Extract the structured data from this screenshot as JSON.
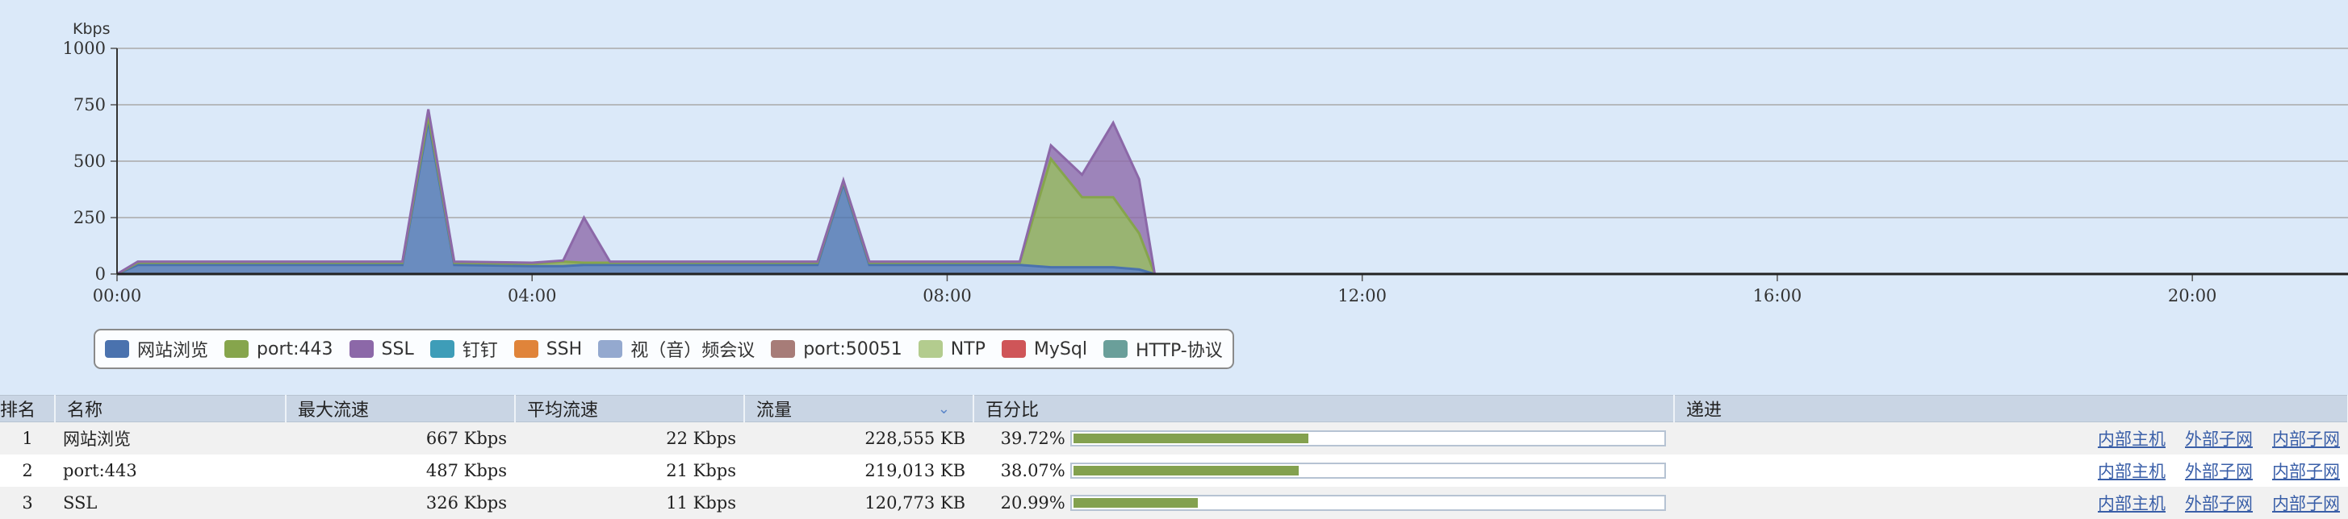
{
  "chart_data": {
    "type": "area",
    "ylabel": "Kbps",
    "ylim": [
      0,
      1000
    ],
    "yticks": [
      "0",
      "250",
      "500",
      "750",
      "1000"
    ],
    "xticks": [
      "00:00",
      "04:00",
      "08:00",
      "12:00",
      "16:00",
      "20:00"
    ],
    "x_range_hours": [
      0,
      21.5
    ],
    "stacked": true,
    "grid": true,
    "legend_position": "bottom-left",
    "series": [
      {
        "name": "网站浏览",
        "color": "#4a72ae",
        "points": [
          [
            0,
            0
          ],
          [
            0.2,
            40
          ],
          [
            1,
            40
          ],
          [
            2,
            40
          ],
          [
            2.75,
            40
          ],
          [
            3,
            680
          ],
          [
            3.25,
            40
          ],
          [
            4,
            35
          ],
          [
            4.3,
            35
          ],
          [
            4.5,
            40
          ],
          [
            4.75,
            40
          ],
          [
            5,
            40
          ],
          [
            6,
            40
          ],
          [
            6.75,
            40
          ],
          [
            7,
            400
          ],
          [
            7.25,
            40
          ],
          [
            8,
            40
          ],
          [
            8.4,
            40
          ],
          [
            8.7,
            40
          ],
          [
            9,
            30
          ],
          [
            9.3,
            30
          ],
          [
            9.6,
            30
          ],
          [
            9.85,
            20
          ],
          [
            10.0,
            0
          ],
          [
            21.5,
            0
          ]
        ]
      },
      {
        "name": "port:443",
        "color": "#86a54c",
        "points": [
          [
            0,
            0
          ],
          [
            0.2,
            10
          ],
          [
            1,
            10
          ],
          [
            2,
            10
          ],
          [
            2.75,
            10
          ],
          [
            3,
            20
          ],
          [
            3.25,
            10
          ],
          [
            4,
            10
          ],
          [
            4.3,
            20
          ],
          [
            4.5,
            10
          ],
          [
            4.75,
            10
          ],
          [
            5,
            10
          ],
          [
            6,
            10
          ],
          [
            6.75,
            10
          ],
          [
            7,
            10
          ],
          [
            7.25,
            10
          ],
          [
            8,
            10
          ],
          [
            8.4,
            10
          ],
          [
            8.7,
            10
          ],
          [
            9,
            480
          ],
          [
            9.3,
            310
          ],
          [
            9.6,
            310
          ],
          [
            9.85,
            160
          ],
          [
            10.0,
            0
          ],
          [
            21.5,
            0
          ]
        ]
      },
      {
        "name": "SSL",
        "color": "#8c68a8",
        "points": [
          [
            0,
            0
          ],
          [
            0.2,
            5
          ],
          [
            1,
            5
          ],
          [
            2,
            5
          ],
          [
            2.75,
            5
          ],
          [
            3,
            30
          ],
          [
            3.25,
            5
          ],
          [
            4,
            5
          ],
          [
            4.3,
            5
          ],
          [
            4.5,
            200
          ],
          [
            4.75,
            5
          ],
          [
            5,
            5
          ],
          [
            6,
            5
          ],
          [
            6.75,
            5
          ],
          [
            7,
            5
          ],
          [
            7.25,
            5
          ],
          [
            8,
            5
          ],
          [
            8.4,
            5
          ],
          [
            8.7,
            5
          ],
          [
            9,
            60
          ],
          [
            9.3,
            100
          ],
          [
            9.6,
            330
          ],
          [
            9.85,
            240
          ],
          [
            10.0,
            0
          ],
          [
            21.5,
            0
          ]
        ]
      },
      {
        "name": "钉钉",
        "color": "#3e9db8",
        "points": []
      },
      {
        "name": "SSH",
        "color": "#e0843a",
        "points": []
      },
      {
        "name": "视（音）频会议",
        "color": "#94a9cf",
        "points": []
      },
      {
        "name": "port:50051",
        "color": "#a77c78",
        "points": []
      },
      {
        "name": "NTP",
        "color": "#b3cc8e",
        "points": []
      },
      {
        "name": "MySql",
        "color": "#cf5558",
        "points": []
      },
      {
        "name": "HTTP-协议",
        "color": "#6a9f9a",
        "points": []
      }
    ]
  },
  "table": {
    "headers": {
      "rank": "排名",
      "name": "名称",
      "max": "最大流速",
      "avg": "平均流速",
      "traffic": "流量",
      "percent": "百分比",
      "drill": "递进"
    },
    "sort_indicator": "⌄",
    "rows": [
      {
        "rank": "1",
        "name": "网站浏览",
        "max": "667 Kbps",
        "avg": "22 Kbps",
        "traffic": "228,555 KB",
        "percent": "39.72%",
        "fraction": 0.3972,
        "links": [
          "内部主机",
          "外部子网",
          "内部子网"
        ]
      },
      {
        "rank": "2",
        "name": "port:443",
        "max": "487 Kbps",
        "avg": "21 Kbps",
        "traffic": "219,013 KB",
        "percent": "38.07%",
        "fraction": 0.3807,
        "links": [
          "内部主机",
          "外部子网",
          "内部子网"
        ]
      },
      {
        "rank": "3",
        "name": "SSL",
        "max": "326 Kbps",
        "avg": "11 Kbps",
        "traffic": "120,773 KB",
        "percent": "20.99%",
        "fraction": 0.2099,
        "links": [
          "内部主机",
          "外部子网",
          "内部子网"
        ]
      }
    ]
  }
}
